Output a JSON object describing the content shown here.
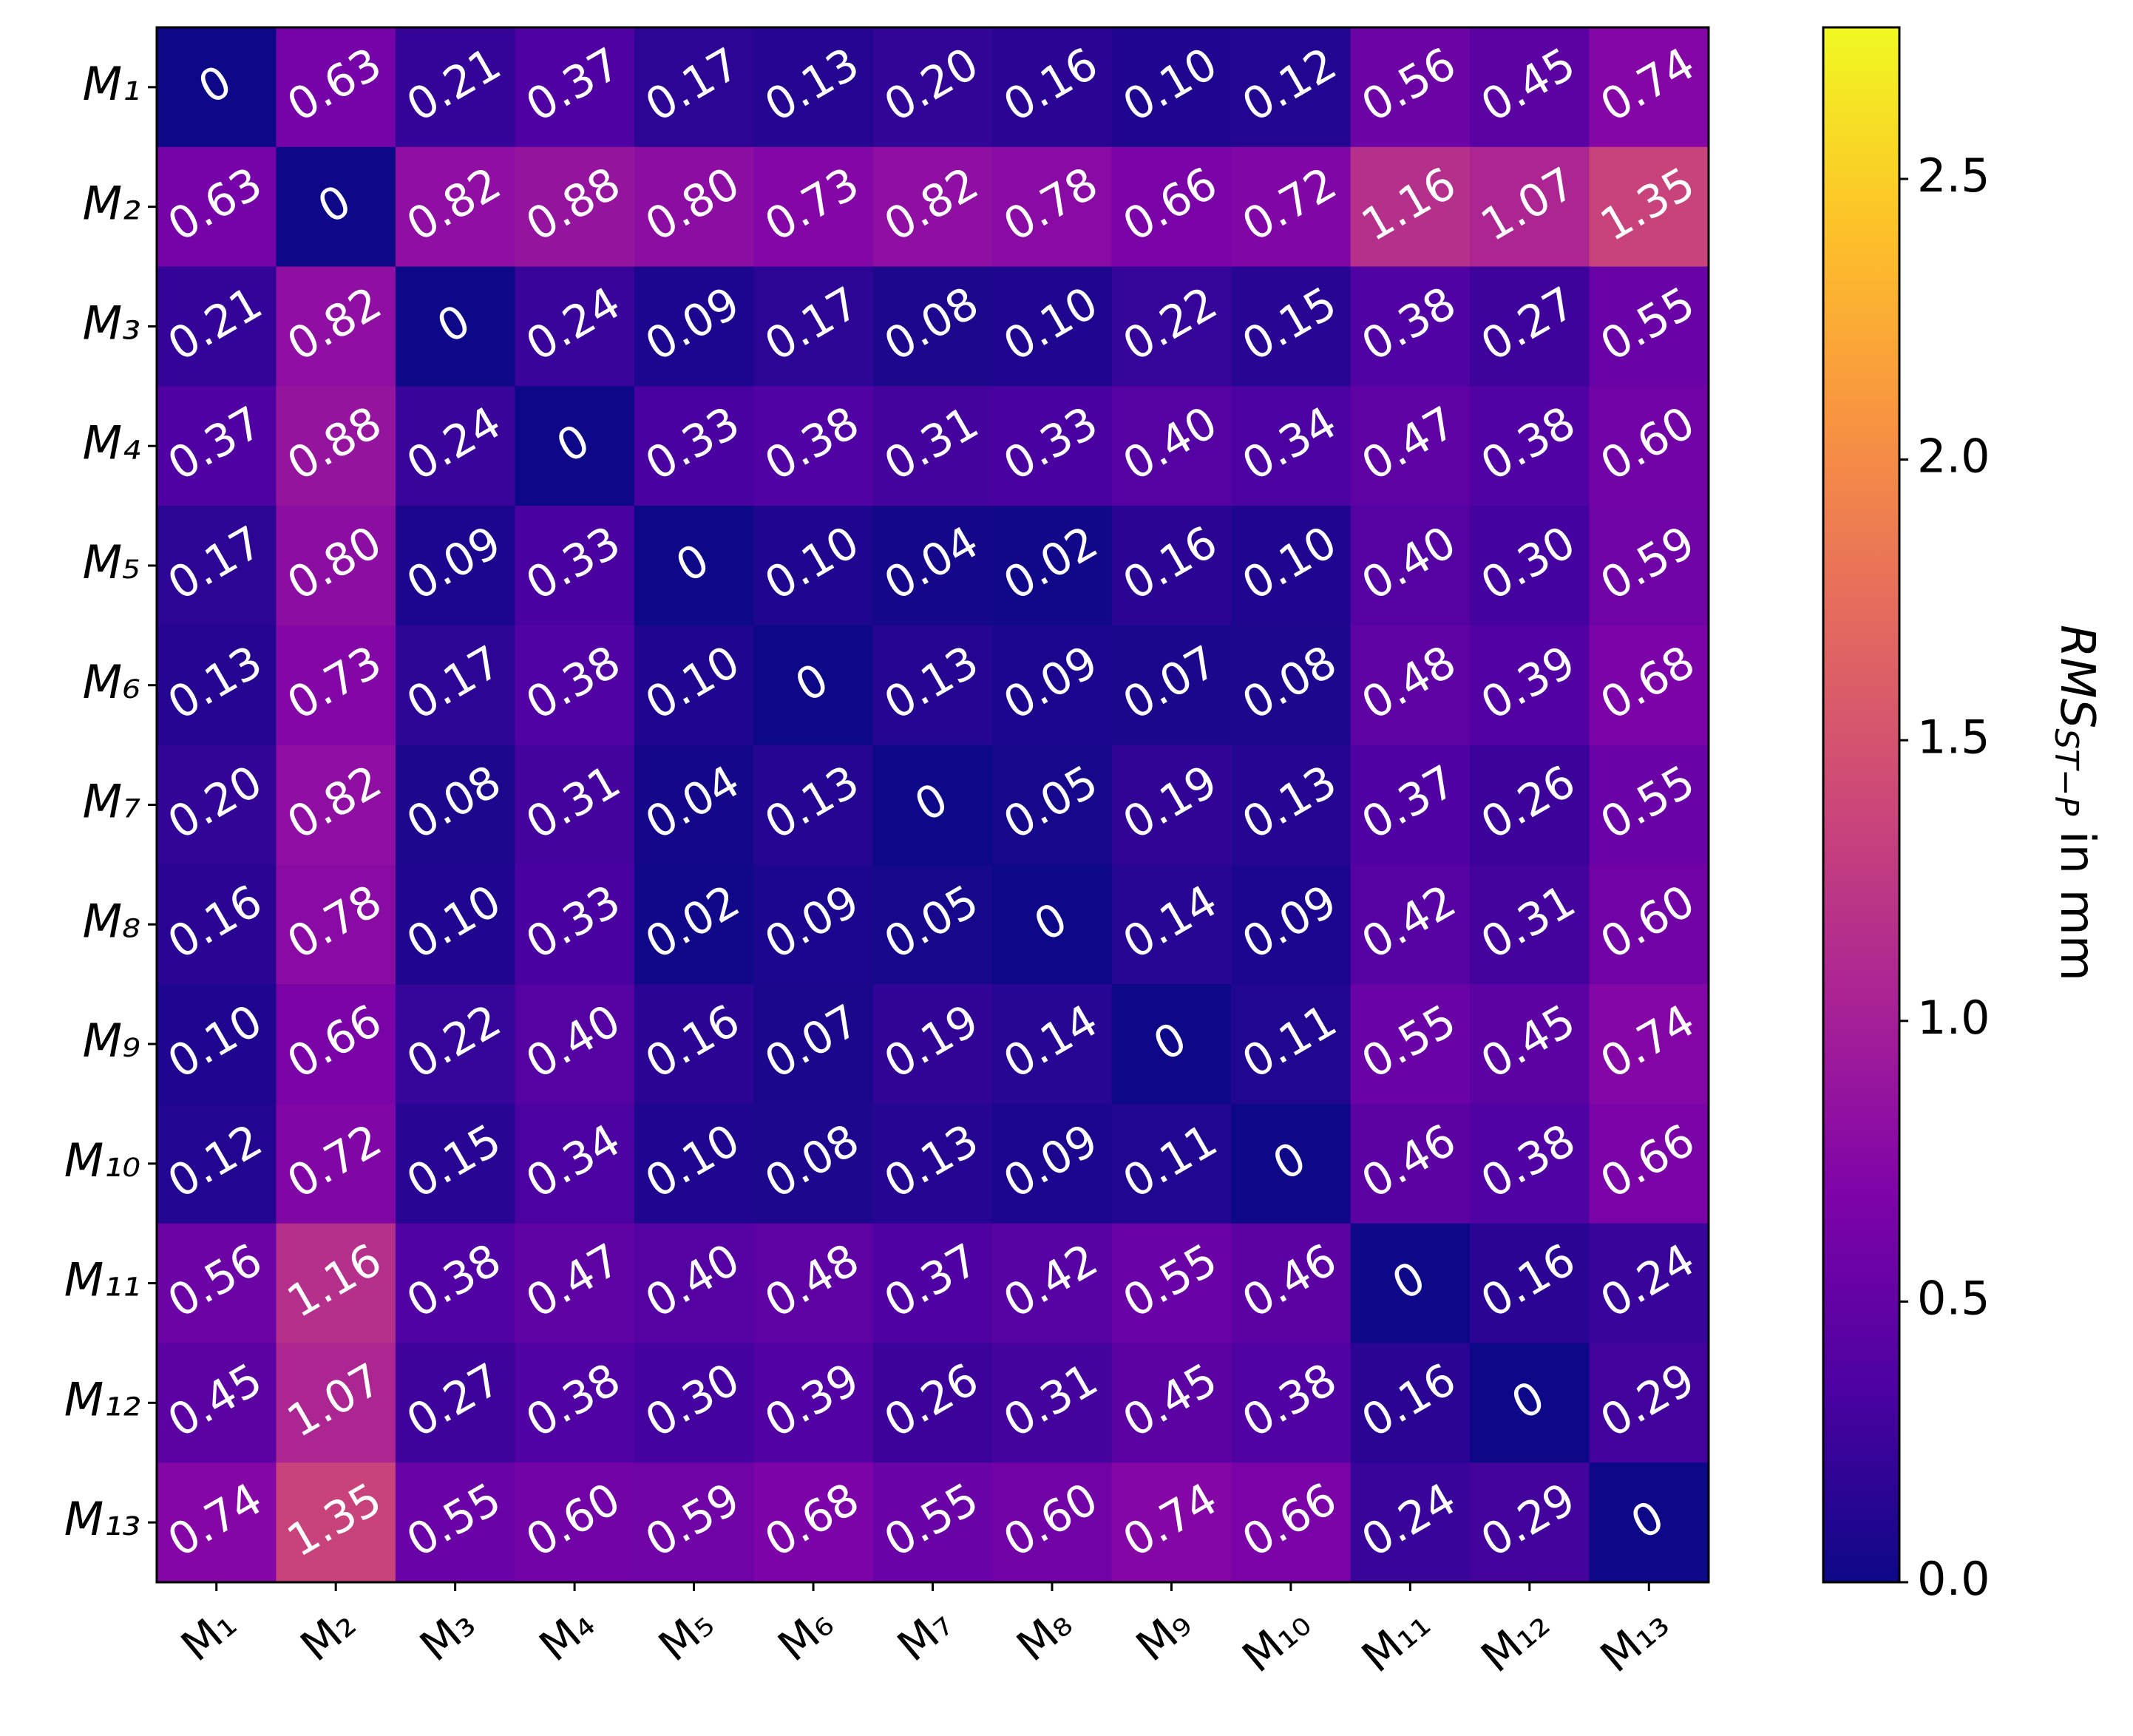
{
  "chart_data": {
    "type": "heatmap",
    "categories": [
      "M₁",
      "M₂",
      "M₃",
      "M₄",
      "M₅",
      "M₆",
      "M₇",
      "M₈",
      "M₉",
      "M₁₀",
      "M₁₁",
      "M₁₂",
      "M₁₃"
    ],
    "values": [
      [
        0,
        0.63,
        0.21,
        0.37,
        0.17,
        0.13,
        0.2,
        0.16,
        0.1,
        0.12,
        0.56,
        0.45,
        0.74
      ],
      [
        0.63,
        0,
        0.82,
        0.88,
        0.8,
        0.73,
        0.82,
        0.78,
        0.66,
        0.72,
        1.16,
        1.07,
        1.35
      ],
      [
        0.21,
        0.82,
        0,
        0.24,
        0.09,
        0.17,
        0.08,
        0.1,
        0.22,
        0.15,
        0.38,
        0.27,
        0.55
      ],
      [
        0.37,
        0.88,
        0.24,
        0,
        0.33,
        0.38,
        0.31,
        0.33,
        0.4,
        0.34,
        0.47,
        0.38,
        0.6
      ],
      [
        0.17,
        0.8,
        0.09,
        0.33,
        0,
        0.1,
        0.04,
        0.02,
        0.16,
        0.1,
        0.4,
        0.3,
        0.59
      ],
      [
        0.13,
        0.73,
        0.17,
        0.38,
        0.1,
        0,
        0.13,
        0.09,
        0.07,
        0.08,
        0.48,
        0.39,
        0.68
      ],
      [
        0.2,
        0.82,
        0.08,
        0.31,
        0.04,
        0.13,
        0,
        0.05,
        0.19,
        0.13,
        0.37,
        0.26,
        0.55
      ],
      [
        0.16,
        0.78,
        0.1,
        0.33,
        0.02,
        0.09,
        0.05,
        0,
        0.14,
        0.09,
        0.42,
        0.31,
        0.6
      ],
      [
        0.1,
        0.66,
        0.22,
        0.4,
        0.16,
        0.07,
        0.19,
        0.14,
        0,
        0.11,
        0.55,
        0.45,
        0.74
      ],
      [
        0.12,
        0.72,
        0.15,
        0.34,
        0.1,
        0.08,
        0.13,
        0.09,
        0.11,
        0,
        0.46,
        0.38,
        0.66
      ],
      [
        0.56,
        1.16,
        0.38,
        0.47,
        0.4,
        0.48,
        0.37,
        0.42,
        0.55,
        0.46,
        0,
        0.16,
        0.24
      ],
      [
        0.45,
        1.07,
        0.27,
        0.38,
        0.3,
        0.39,
        0.26,
        0.31,
        0.45,
        0.38,
        0.16,
        0,
        0.29
      ],
      [
        0.74,
        1.35,
        0.55,
        0.6,
        0.59,
        0.68,
        0.55,
        0.6,
        0.74,
        0.66,
        0.24,
        0.29,
        0
      ]
    ],
    "value_labels": [
      [
        "0",
        "0.63",
        "0.21",
        "0.37",
        "0.17",
        "0.13",
        "0.20",
        "0.16",
        "0.10",
        "0.12",
        "0.56",
        "0.45",
        "0.74"
      ],
      [
        "0.63",
        "0",
        "0.82",
        "0.88",
        "0.80",
        "0.73",
        "0.82",
        "0.78",
        "0.66",
        "0.72",
        "1.16",
        "1.07",
        "1.35"
      ],
      [
        "0.21",
        "0.82",
        "0",
        "0.24",
        "0.09",
        "0.17",
        "0.08",
        "0.10",
        "0.22",
        "0.15",
        "0.38",
        "0.27",
        "0.55"
      ],
      [
        "0.37",
        "0.88",
        "0.24",
        "0",
        "0.33",
        "0.38",
        "0.31",
        "0.33",
        "0.40",
        "0.34",
        "0.47",
        "0.38",
        "0.60"
      ],
      [
        "0.17",
        "0.80",
        "0.09",
        "0.33",
        "0",
        "0.10",
        "0.04",
        "0.02",
        "0.16",
        "0.10",
        "0.40",
        "0.30",
        "0.59"
      ],
      [
        "0.13",
        "0.73",
        "0.17",
        "0.38",
        "0.10",
        "0",
        "0.13",
        "0.09",
        "0.07",
        "0.08",
        "0.48",
        "0.39",
        "0.68"
      ],
      [
        "0.20",
        "0.82",
        "0.08",
        "0.31",
        "0.04",
        "0.13",
        "0",
        "0.05",
        "0.19",
        "0.13",
        "0.37",
        "0.26",
        "0.55"
      ],
      [
        "0.16",
        "0.78",
        "0.10",
        "0.33",
        "0.02",
        "0.09",
        "0.05",
        "0",
        "0.14",
        "0.09",
        "0.42",
        "0.31",
        "0.60"
      ],
      [
        "0.10",
        "0.66",
        "0.22",
        "0.40",
        "0.16",
        "0.07",
        "0.19",
        "0.14",
        "0",
        "0.11",
        "0.55",
        "0.45",
        "0.74"
      ],
      [
        "0.12",
        "0.72",
        "0.15",
        "0.34",
        "0.10",
        "0.08",
        "0.13",
        "0.09",
        "0.11",
        "0",
        "0.46",
        "0.38",
        "0.66"
      ],
      [
        "0.56",
        "1.16",
        "0.38",
        "0.47",
        "0.40",
        "0.48",
        "0.37",
        "0.42",
        "0.55",
        "0.46",
        "0",
        "0.16",
        "0.24"
      ],
      [
        "0.45",
        "1.07",
        "0.27",
        "0.38",
        "0.30",
        "0.39",
        "0.26",
        "0.31",
        "0.45",
        "0.38",
        "0.16",
        "0",
        "0.29"
      ],
      [
        "0.74",
        "1.35",
        "0.55",
        "0.60",
        "0.59",
        "0.68",
        "0.55",
        "0.60",
        "0.74",
        "0.66",
        "0.24",
        "0.29",
        "0"
      ]
    ],
    "clim": [
      0,
      2.77
    ],
    "colormap": [
      "#0d0887",
      "#4c02a1",
      "#7e03a8",
      "#a92395",
      "#cc4778",
      "#e56b5d",
      "#f89540",
      "#fdc328",
      "#f0f921"
    ],
    "colorbar": {
      "label": [
        "RMS",
        "ST−P",
        " in mm"
      ],
      "ticks": [
        {
          "value": 0,
          "label": "0.0"
        },
        {
          "value": 0.5,
          "label": "0.5"
        },
        {
          "value": 1,
          "label": "1.0"
        },
        {
          "value": 1.5,
          "label": "1.5"
        },
        {
          "value": 2,
          "label": "2.0"
        },
        {
          "value": 2.5,
          "label": "2.5"
        }
      ]
    }
  }
}
